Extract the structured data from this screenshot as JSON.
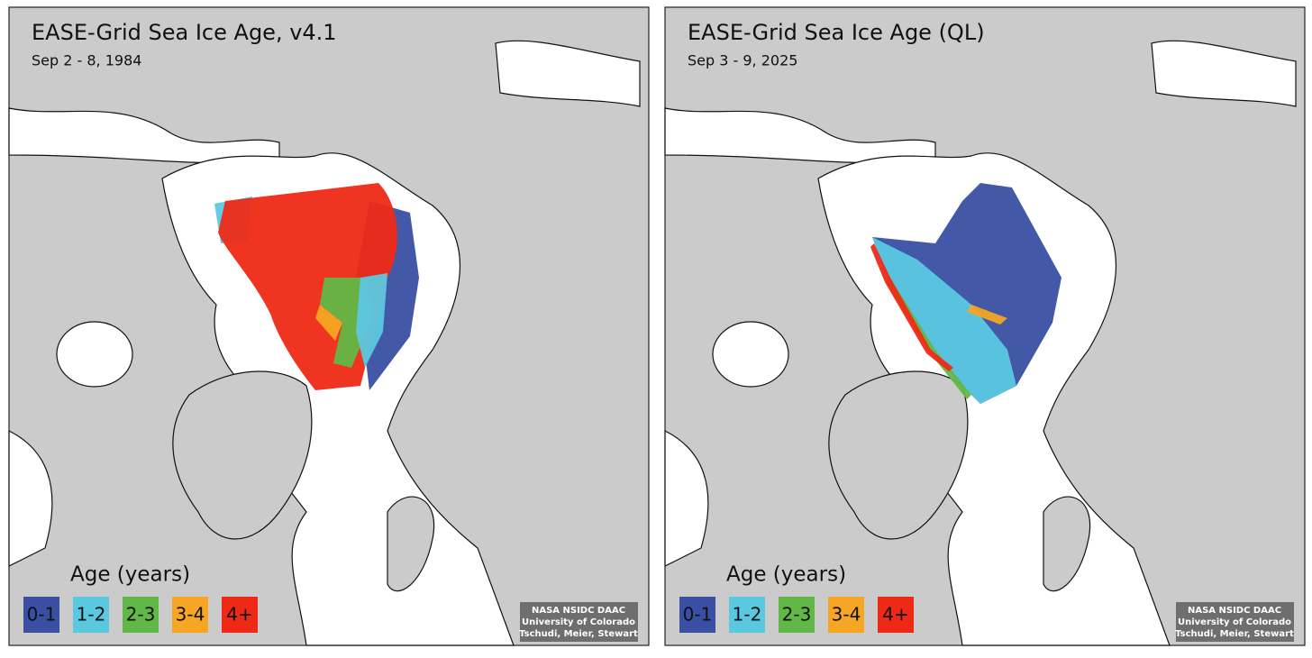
{
  "panels": [
    {
      "title": "EASE-Grid Sea Ice Age, v4.1",
      "subtitle": "Sep 2 - 8, 1984",
      "legend": {
        "title": "Age (years)",
        "items": [
          {
            "label": "0-1",
            "color": "#3a4fa3"
          },
          {
            "label": "1-2",
            "color": "#5bc8e2"
          },
          {
            "label": "2-3",
            "color": "#62b846"
          },
          {
            "label": "3-4",
            "color": "#f6a623"
          },
          {
            "label": "4+",
            "color": "#ee2a16"
          }
        ]
      },
      "credit": [
        "NASA NSIDC DAAC",
        "University of Colorado",
        "Tschudi, Meier, Stewart"
      ]
    },
    {
      "title": "EASE-Grid Sea Ice Age (QL)",
      "subtitle": "Sep 3 - 9, 2025",
      "legend": {
        "title": "Age (years)",
        "items": [
          {
            "label": "0-1",
            "color": "#3a4fa3"
          },
          {
            "label": "1-2",
            "color": "#5bc8e2"
          },
          {
            "label": "2-3",
            "color": "#62b846"
          },
          {
            "label": "3-4",
            "color": "#f6a623"
          },
          {
            "label": "4+",
            "color": "#ee2a16"
          }
        ]
      },
      "credit": [
        "NASA NSIDC DAAC",
        "University of Colorado",
        "Tschudi, Meier, Stewart"
      ]
    }
  ]
}
